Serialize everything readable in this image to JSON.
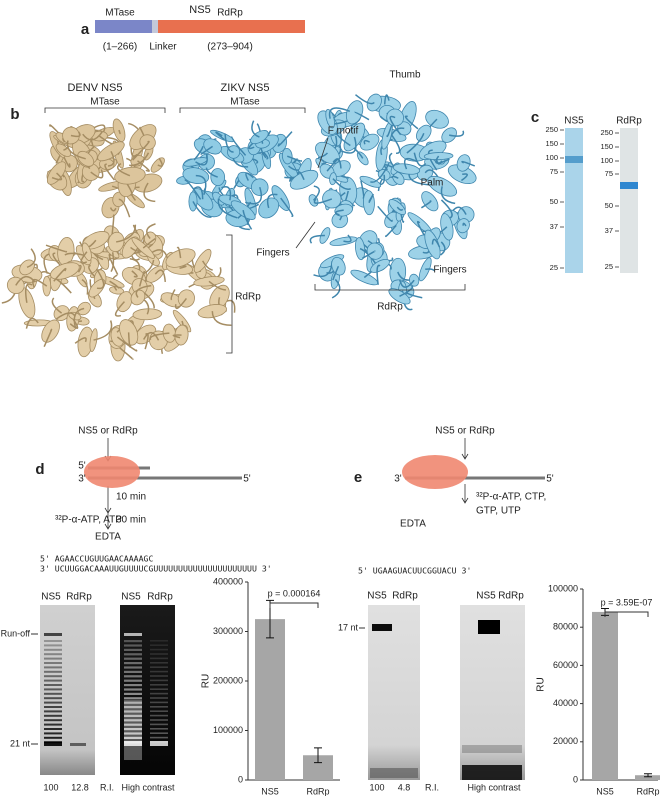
{
  "panel_a": {
    "letter": "a",
    "title": "NS5",
    "domains": [
      {
        "name": "MTase",
        "range": "(1–266)"
      },
      {
        "name": "Linker"
      },
      {
        "name": "RdRp",
        "range": "(273–904)"
      }
    ]
  },
  "panel_b": {
    "letter": "b",
    "denv": {
      "title": "DENV NS5",
      "mtase": "MTase",
      "rdrp": "RdRp"
    },
    "zikv": {
      "title": "ZIKV NS5",
      "mtase": "MTase",
      "rdrp": "RdRp",
      "thumb": "Thumb",
      "f_motif": "F motif",
      "palm": "Palm",
      "fingers": [
        "Fingers",
        "Fingers"
      ]
    }
  },
  "panel_c": {
    "letter": "c",
    "gels": [
      {
        "lane": "NS5",
        "markers": [
          250,
          150,
          100,
          75,
          50,
          37,
          25
        ]
      },
      {
        "lane": "RdRp",
        "markers": [
          250,
          150,
          100,
          75,
          50,
          37,
          25
        ]
      }
    ]
  },
  "panel_d": {
    "letter": "d",
    "enzyme": "NS5 or RdRp",
    "strand_ends": [
      "5'",
      "3'",
      "5'"
    ],
    "step1": "10 min",
    "reagents": "³²P-α-ATP, ATP",
    "step2": "30 min",
    "stop": "EDTA",
    "sequence": [
      "5' AGAACCUGUUGAACAAAAGC",
      "3' UCUUGGACAAAUUGUUUUCGUUUUUUUUUUUUUUUUUUUUU 3'"
    ],
    "gels": [
      {
        "lanes": [
          "NS5",
          "RdRp"
        ],
        "markers": [
          "Run-off",
          "21 nt"
        ],
        "ri": [
          100,
          12.8
        ],
        "ri_label": "R.I."
      },
      {
        "lanes": [
          "NS5",
          "RdRp"
        ],
        "caption": "High contrast"
      }
    ],
    "chart": {
      "type": "bar",
      "categories": [
        "NS5",
        "RdRp"
      ],
      "values": [
        325000,
        50000
      ],
      "errors": [
        38000,
        15000
      ],
      "color": "#a6a6a6",
      "ylabel": "RU",
      "ylim": [
        0,
        400000
      ],
      "yticks": [
        0,
        100000,
        200000,
        300000,
        400000
      ],
      "annotation": "p = 0.000164"
    }
  },
  "panel_e": {
    "letter": "e",
    "enzyme": "NS5 or RdRp",
    "strand_ends": [
      "3'",
      "5'"
    ],
    "reagents": [
      "³²P-α-ATP, CTP,",
      "GTP, UTP"
    ],
    "stop": "EDTA",
    "sequence": "5' UGAAGUACUUCGGUACU 3'",
    "gels": [
      {
        "lanes": [
          "NS5",
          "RdRp"
        ],
        "markers": [
          "17 nt"
        ],
        "ri": [
          100,
          4.8
        ],
        "ri_label": "R.I."
      },
      {
        "lanes": [
          "NS5",
          "RdRp"
        ],
        "caption": "High contrast"
      }
    ],
    "chart": {
      "type": "bar",
      "categories": [
        "NS5",
        "RdRp"
      ],
      "values": [
        88000,
        2500
      ],
      "errors": [
        1800,
        800
      ],
      "color": "#a6a6a6",
      "ylabel": "RU",
      "ylim": [
        0,
        100000
      ],
      "yticks": [
        0,
        20000,
        40000,
        60000,
        80000,
        100000
      ],
      "annotation": "p = 3.59E-07"
    }
  }
}
